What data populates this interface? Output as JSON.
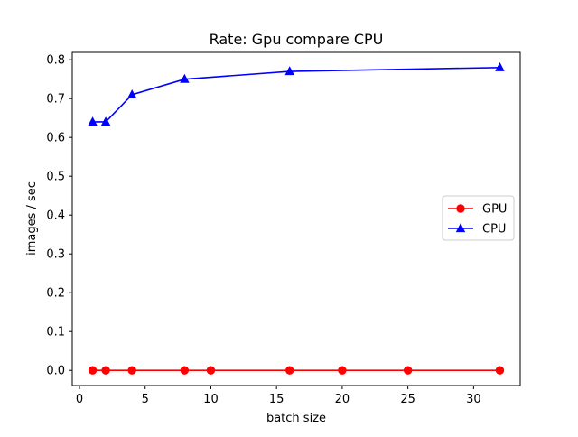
{
  "chart_data": {
    "type": "line",
    "title": "Rate: Gpu compare CPU",
    "xlabel": "batch size",
    "ylabel": "images / sec",
    "xlim": [
      -0.55,
      33.55
    ],
    "ylim": [
      -0.039,
      0.819
    ],
    "x_ticks": [
      0,
      5,
      10,
      15,
      20,
      25,
      30
    ],
    "y_ticks": [
      0.0,
      0.1,
      0.2,
      0.3,
      0.4,
      0.5,
      0.6,
      0.7,
      0.8
    ],
    "grid": false,
    "legend_position": "center-right",
    "series": [
      {
        "name": "GPU",
        "color": "#ff0000",
        "marker": "circle",
        "x": [
          1,
          2,
          4,
          8,
          10,
          16,
          20,
          25,
          32
        ],
        "y": [
          0,
          0,
          0,
          0,
          0,
          0,
          0,
          0,
          0
        ]
      },
      {
        "name": "CPU",
        "color": "#0000ff",
        "marker": "triangle",
        "x": [
          1,
          2,
          4,
          8,
          16,
          32
        ],
        "y": [
          0.64,
          0.64,
          0.71,
          0.75,
          0.77,
          0.78
        ]
      }
    ]
  }
}
